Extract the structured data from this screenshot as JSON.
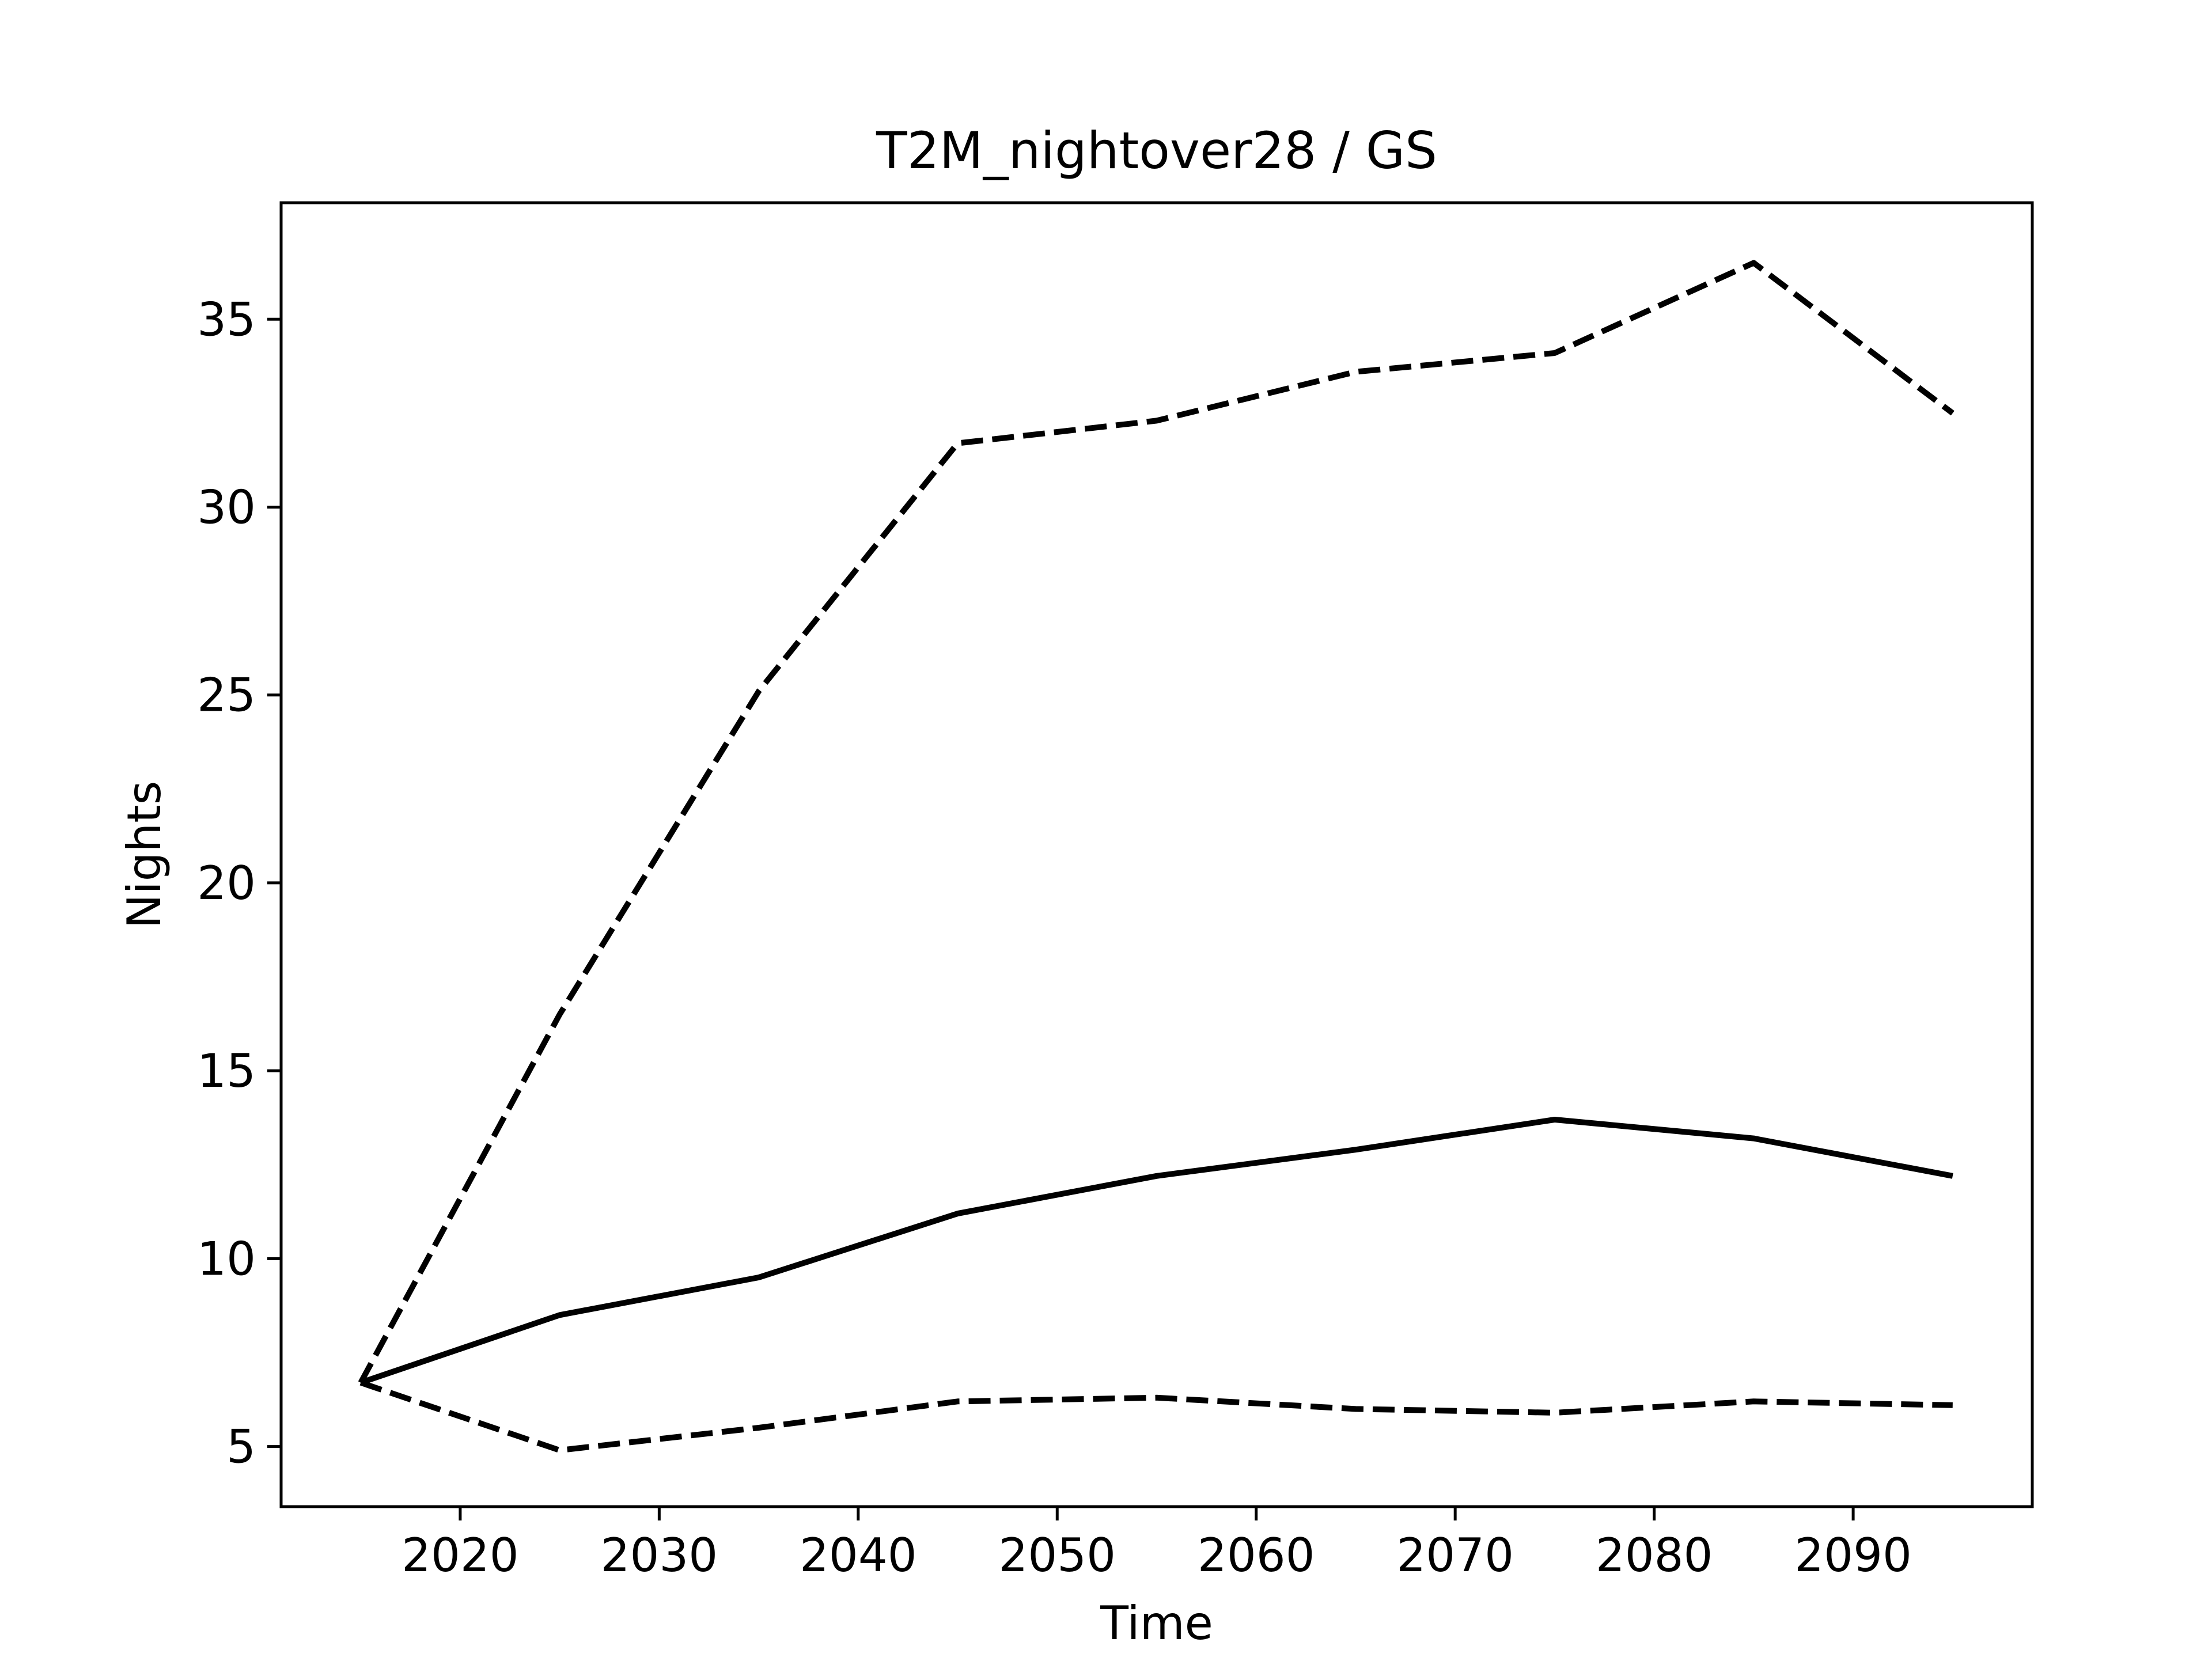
{
  "chart_data": {
    "type": "line",
    "title": "T2M_nightover28 / GS",
    "xlabel": "Time",
    "ylabel": "Nights",
    "xlim": [
      2011,
      2099
    ],
    "ylim": [
      3.4,
      38.1
    ],
    "xticks": [
      2020,
      2030,
      2040,
      2050,
      2060,
      2070,
      2080,
      2090
    ],
    "yticks": [
      5,
      10,
      15,
      20,
      25,
      30,
      35
    ],
    "grid": false,
    "legend": "none",
    "x": [
      2015,
      2025,
      2035,
      2045,
      2055,
      2065,
      2075,
      2085,
      2095
    ],
    "series": [
      {
        "values": [
          6.7,
          8.5,
          9.5,
          11.2,
          12.2,
          12.9,
          13.7,
          13.2,
          12.2
        ],
        "style": "solid",
        "color": "#000000"
      },
      {
        "values": [
          6.7,
          16.5,
          25.1,
          31.7,
          32.3,
          33.6,
          34.1,
          36.5,
          32.5
        ],
        "style": "dashed",
        "color": "#000000"
      },
      {
        "values": [
          6.7,
          4.9,
          5.5,
          6.2,
          6.3,
          6.0,
          5.9,
          6.2,
          6.1
        ],
        "style": "dashed",
        "color": "#000000"
      }
    ]
  }
}
